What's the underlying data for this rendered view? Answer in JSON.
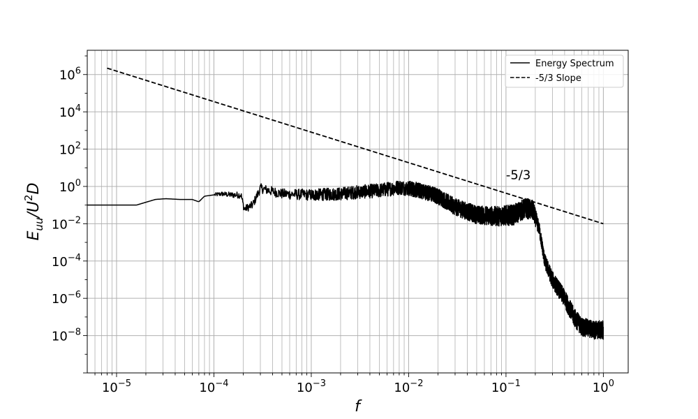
{
  "chart_data": {
    "type": "line",
    "xscale": "log",
    "yscale": "log",
    "xlim": [
      5e-06,
      1.8
    ],
    "ylim": [
      1e-10,
      20000000.0
    ],
    "grid": "both (major and minor)",
    "legend_position": "top-right",
    "xlabel": {
      "main": "f"
    },
    "ylabel": {
      "E": "E",
      "sub": "uu",
      "slash": "/U",
      "sup": "2",
      "tail": "D"
    },
    "x_ticks": [
      {
        "value": 1e-05,
        "base": "10",
        "exp": "−5"
      },
      {
        "value": 0.0001,
        "base": "10",
        "exp": "−4"
      },
      {
        "value": 0.001,
        "base": "10",
        "exp": "−3"
      },
      {
        "value": 0.01,
        "base": "10",
        "exp": "−2"
      },
      {
        "value": 0.1,
        "base": "10",
        "exp": "−1"
      },
      {
        "value": 1,
        "base": "10",
        "exp": "0"
      }
    ],
    "y_ticks": [
      {
        "value": 1000000.0,
        "base": "10",
        "exp": "6"
      },
      {
        "value": 10000.0,
        "base": "10",
        "exp": "4"
      },
      {
        "value": 100.0,
        "base": "10",
        "exp": "2"
      },
      {
        "value": 1,
        "base": "10",
        "exp": "0"
      },
      {
        "value": 0.01,
        "base": "10",
        "exp": "−2"
      },
      {
        "value": 0.0001,
        "base": "10",
        "exp": "−4"
      },
      {
        "value": 1e-06,
        "base": "10",
        "exp": "−6"
      },
      {
        "value": 1e-08,
        "base": "10",
        "exp": "−8"
      }
    ],
    "annotation": {
      "text": "-5/3",
      "x": 0.1,
      "y": 2.5
    },
    "series": [
      {
        "name": "Energy Spectrum",
        "style": "solid",
        "color": "#000000",
        "points": [
          [
            5e-06,
            0.1
          ],
          [
            1.6e-05,
            0.1
          ],
          [
            2.5e-05,
            0.2
          ],
          [
            3.2e-05,
            0.22
          ],
          [
            4.5e-05,
            0.2
          ],
          [
            6e-05,
            0.2
          ],
          [
            7e-05,
            0.15
          ],
          [
            8e-05,
            0.3
          ],
          [
            0.00012,
            0.4
          ],
          [
            0.00015,
            0.35
          ],
          [
            0.00019,
            0.35
          ],
          [
            0.000205,
            0.06
          ],
          [
            0.00025,
            0.1
          ],
          [
            0.0003,
            0.8
          ],
          [
            0.0005,
            0.4
          ],
          [
            0.001,
            0.35
          ],
          [
            0.002,
            0.4
          ],
          [
            0.003,
            0.5
          ],
          [
            0.005,
            0.6
          ],
          [
            0.008,
            0.9
          ],
          [
            0.01,
            0.8
          ],
          [
            0.015,
            0.5
          ],
          [
            0.02,
            0.3
          ],
          [
            0.03,
            0.08
          ],
          [
            0.05,
            0.03
          ],
          [
            0.08,
            0.025
          ],
          [
            0.12,
            0.03
          ],
          [
            0.16,
            0.07
          ],
          [
            0.19,
            0.05
          ],
          [
            0.22,
            0.005
          ],
          [
            0.25,
            0.0001
          ],
          [
            0.3,
            1e-05
          ],
          [
            0.4,
            1e-06
          ],
          [
            0.5,
            1e-07
          ],
          [
            0.6,
            3e-08
          ],
          [
            0.8,
            2e-08
          ],
          [
            1.0,
            2e-08
          ]
        ],
        "noise": {
          "envelope_x": [
            0.0001,
            0.0003,
            0.002,
            0.03,
            0.1,
            0.19,
            0.22,
            0.3,
            0.5,
            1.0
          ],
          "amplitude_decades": [
            0.1,
            0.25,
            0.35,
            0.45,
            0.55,
            0.55,
            0.35,
            0.45,
            0.5,
            0.5
          ]
        }
      },
      {
        "name": "-5/3 Slope",
        "style": "dashed",
        "color": "#000000",
        "points": [
          [
            8e-06,
            2200000.0
          ],
          [
            1.0,
            0.01
          ]
        ]
      }
    ]
  }
}
